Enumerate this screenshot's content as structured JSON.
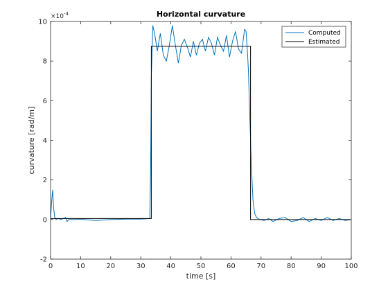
{
  "chart_data": {
    "type": "line",
    "title": "Horizontal curvature",
    "xlabel": "time [s]",
    "ylabel": "curvature [rad/m]",
    "y_exponent_label": "×10^-4",
    "y_exponent_base": "×10",
    "y_exponent_power": "-4",
    "xlim": [
      0,
      100
    ],
    "ylim": [
      -2,
      10
    ],
    "y_scale_factor": 0.0001,
    "x_ticks": [
      0,
      10,
      20,
      30,
      40,
      50,
      60,
      70,
      80,
      90,
      100
    ],
    "y_ticks": [
      -2,
      0,
      2,
      4,
      6,
      8,
      10
    ],
    "x_tick_labels": [
      "0",
      "10",
      "20",
      "30",
      "40",
      "50",
      "60",
      "70",
      "80",
      "90",
      "100"
    ],
    "y_tick_labels": [
      "-2",
      "0",
      "2",
      "4",
      "6",
      "8",
      "10"
    ],
    "grid": false,
    "legend_position": "top-right",
    "series": [
      {
        "name": "Computed",
        "color": "#0072BD",
        "x": [
          0,
          0.3,
          0.7,
          1.0,
          1.4,
          1.8,
          2.5,
          3.5,
          5,
          5.5,
          6,
          8,
          10,
          15,
          20,
          25,
          30,
          33,
          33.3,
          33.5,
          34,
          34.7,
          35.5,
          36.5,
          37.5,
          38.5,
          39.5,
          40.5,
          41.5,
          42.5,
          43.5,
          44.5,
          45.5,
          46.5,
          47.5,
          48.5,
          49.5,
          50.5,
          51.5,
          52.5,
          53.5,
          54.5,
          55.5,
          56.5,
          57.5,
          58.5,
          59.5,
          60.5,
          61.5,
          62.5,
          63.5,
          64.5,
          65,
          65.5,
          65.8,
          66.1,
          66.4,
          66.7,
          67,
          67.3,
          67.6,
          67.9,
          68.5,
          69.5,
          71,
          72.5,
          74,
          76,
          78,
          80,
          82,
          84,
          86,
          88,
          90,
          92,
          94,
          96,
          98,
          100
        ],
        "values": [
          0,
          0.8,
          1.5,
          0.6,
          0.1,
          0.0,
          0.05,
          0.0,
          0.1,
          -0.1,
          0.0,
          0.0,
          0.02,
          -0.05,
          0.0,
          0.02,
          0.02,
          0.05,
          3.0,
          7.2,
          9.8,
          9.3,
          8.5,
          9.4,
          8.3,
          8.0,
          8.8,
          9.8,
          8.8,
          7.9,
          8.8,
          9.1,
          8.7,
          8.2,
          9.0,
          8.3,
          8.9,
          9.1,
          8.5,
          9.2,
          8.9,
          8.3,
          9.2,
          8.8,
          8.5,
          9.3,
          8.2,
          9.0,
          9.5,
          8.6,
          8.4,
          9.6,
          9.5,
          8.4,
          7.5,
          6.0,
          4.5,
          3.0,
          2.0,
          1.0,
          0.6,
          0.3,
          0.1,
          0.0,
          -0.05,
          0.05,
          -0.1,
          0.05,
          0.1,
          -0.1,
          -0.05,
          0.1,
          -0.1,
          0.05,
          -0.05,
          0.1,
          -0.05,
          0.05,
          -0.05,
          0.0
        ]
      },
      {
        "name": "Estimated",
        "color": "#000000",
        "x": [
          0,
          33.5,
          33.5,
          66.5,
          66.5,
          100
        ],
        "values": [
          0.05,
          0.05,
          8.75,
          8.75,
          0.0,
          0.0
        ]
      }
    ]
  }
}
